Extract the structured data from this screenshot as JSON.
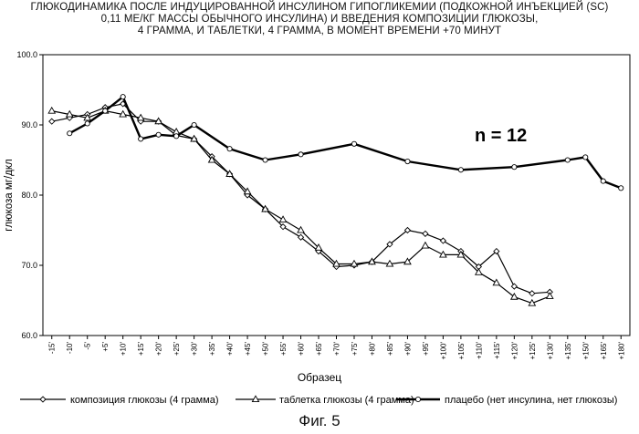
{
  "chart_data": {
    "type": "line",
    "title_lines": [
      "ГЛЮКОДИНАМИКА ПОСЛЕ ИНДУЦИРОВАННОЙ ИНСУЛИНОМ ГИПОГЛИКЕМИИ (ПОДКОЖНОЙ ИНЪЕКЦИЕЙ (SC)",
      "0,11 МЕ/КГ МАССЫ ОБЫЧНОГО ИНСУЛИНА) И ВВЕДЕНИЯ КОМПОЗИЦИИ ГЛЮКОЗЫ,",
      "4 ГРАММА, И ТАБЛЕТКИ, 4 ГРАММА, В МОМЕНТ ВРЕМЕНИ +70 МИНУТ"
    ],
    "xlabel": "Образец",
    "ylabel": "глюкоза мг/дкл",
    "ylim": [
      60,
      100
    ],
    "yticks": [
      "60.0",
      "70.0",
      "80.0",
      "90.0",
      "100.0"
    ],
    "grid": false,
    "legend_position": "bottom",
    "annotation": "n = 12",
    "categories": [
      "-15'",
      "-10'",
      "-5'",
      "+5'",
      "+10'",
      "+15'",
      "+20'",
      "+25'",
      "+30'",
      "+35'",
      "+40'",
      "+45'",
      "+50'",
      "+55'",
      "+60'",
      "+65'",
      "+70'",
      "+75'",
      "+80'",
      "+85'",
      "+90'",
      "+95'",
      "+100'",
      "+105'",
      "+110'",
      "+115'",
      "+120'",
      "+125'",
      "+130'",
      "+135'",
      "+150'",
      "+165'",
      "+180'"
    ],
    "series": [
      {
        "name": "композиция глюкозы (4 грамма)",
        "marker": "diamond",
        "values": [
          90.5,
          91.0,
          91.5,
          92.5,
          93.0,
          90.5,
          90.5,
          88.5,
          88.0,
          85.5,
          83.0,
          80.0,
          78.0,
          75.5,
          74.0,
          72.0,
          69.8,
          70.0,
          70.5,
          73.0,
          75.0,
          74.5,
          73.5,
          72.0,
          69.8,
          72.0,
          67.0,
          66.0,
          66.2,
          null,
          null,
          null,
          null
        ]
      },
      {
        "name": "таблетка глюкозы (4 грамма)",
        "marker": "triangle",
        "values": [
          92.0,
          91.5,
          91.0,
          92.0,
          91.5,
          91.0,
          90.5,
          89.0,
          88.0,
          85.0,
          83.0,
          80.5,
          78.0,
          76.5,
          75.0,
          72.5,
          70.2,
          70.2,
          70.5,
          70.2,
          70.5,
          72.8,
          71.5,
          71.5,
          69.0,
          67.5,
          65.5,
          64.6,
          65.6,
          null,
          null,
          null,
          null
        ]
      },
      {
        "name": "плацебо (нет инсулина, нет глюкозы)",
        "marker": "circle",
        "values": [
          null,
          88.8,
          90.2,
          92.0,
          94.0,
          88.0,
          88.6,
          88.4,
          90.0,
          null,
          86.6,
          null,
          85.0,
          null,
          85.8,
          null,
          null,
          87.3,
          null,
          null,
          84.8,
          null,
          null,
          83.6,
          null,
          null,
          84.0,
          null,
          null,
          85.0,
          85.4,
          82.0,
          81.0
        ]
      }
    ]
  },
  "figure_caption": "Фиг. 5"
}
